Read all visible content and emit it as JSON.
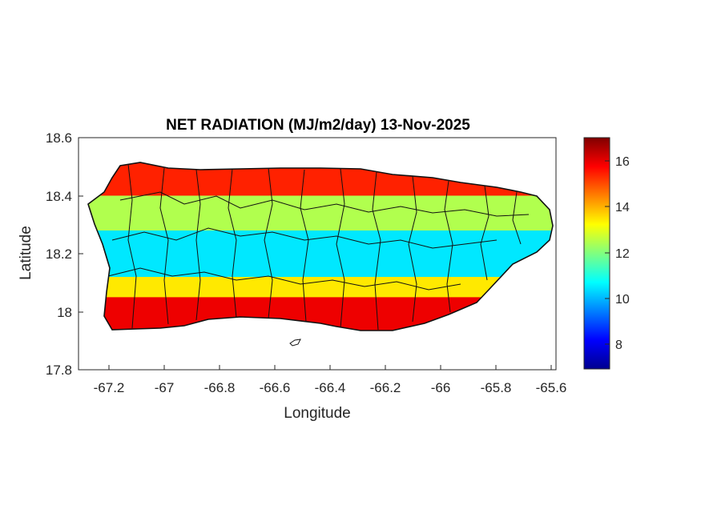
{
  "chart_data": {
    "type": "heatmap",
    "title": "NET RADIATION (MJ/m2/day) 13-Nov-2025",
    "xlabel": "Longitude",
    "ylabel": "Latitude",
    "xlim": [
      -67.3,
      -65.58
    ],
    "ylim": [
      17.8,
      18.6
    ],
    "x_ticks": [
      -67.2,
      -67,
      -66.8,
      -66.6,
      -66.4,
      -66.2,
      -66,
      -65.8,
      -65.6
    ],
    "x_tick_labels": [
      "-67.2",
      "-67",
      "-66.8",
      "-66.6",
      "-66.4",
      "-66.2",
      "-66",
      "-65.8",
      "-65.6"
    ],
    "y_ticks": [
      17.8,
      18,
      18.2,
      18.4,
      18.6
    ],
    "y_tick_labels": [
      "17.8",
      "18",
      "18.2",
      "18.4",
      "18.6"
    ],
    "colorbar": {
      "colormap": "jet",
      "range": [
        6.9,
        17.1
      ],
      "ticks": [
        8,
        10,
        12,
        14,
        16
      ],
      "tick_labels": [
        "8",
        "10",
        "12",
        "14",
        "16"
      ]
    },
    "grid": false,
    "bands": [
      {
        "lat_min": 18.4,
        "lat_max": 18.52,
        "value": 15.5
      },
      {
        "lat_min": 18.28,
        "lat_max": 18.4,
        "value": 12.5
      },
      {
        "lat_min": 18.12,
        "lat_max": 18.28,
        "value": 10.5
      },
      {
        "lat_min": 18.05,
        "lat_max": 18.12,
        "value": 13.5
      },
      {
        "lat_min": 17.92,
        "lat_max": 18.05,
        "value": 16.0
      }
    ]
  }
}
